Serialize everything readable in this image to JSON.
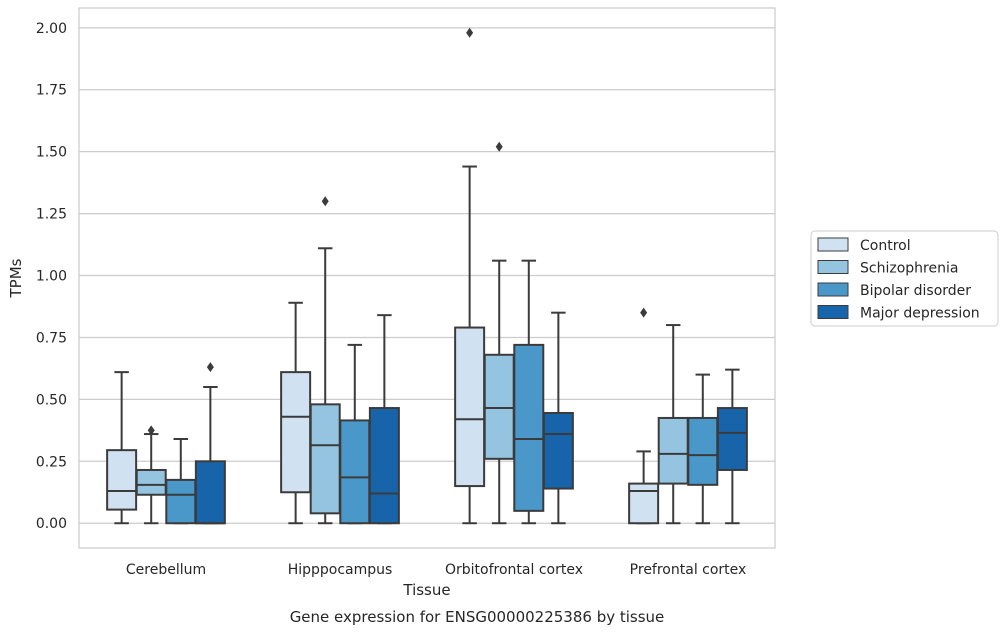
{
  "chart_data": {
    "type": "boxplot",
    "caption": "Gene expression for ENSG00000225386 by tissue",
    "xlabel": "Tissue",
    "ylabel": "TPMs",
    "ylim": [
      -0.1,
      2.08
    ],
    "yticks": [
      "0.00",
      "0.25",
      "0.50",
      "0.75",
      "1.00",
      "1.25",
      "1.50",
      "1.75",
      "2.00"
    ],
    "ytick_values": [
      0,
      0.25,
      0.5,
      0.75,
      1.0,
      1.25,
      1.5,
      1.75,
      2.0
    ],
    "grid": "horizontal",
    "legend_position": "right",
    "categories": [
      "Cerebellum",
      "Hipppocampus",
      "Orbitofrontal cortex",
      "Prefrontal cortex"
    ],
    "series": [
      {
        "name": "Control",
        "color": "#d0e1f2",
        "boxes": [
          {
            "min": 0.0,
            "q1": 0.055,
            "median": 0.13,
            "q3": 0.295,
            "max": 0.61,
            "outliers": []
          },
          {
            "min": 0.0,
            "q1": 0.125,
            "median": 0.43,
            "q3": 0.61,
            "max": 0.89,
            "outliers": []
          },
          {
            "min": 0.0,
            "q1": 0.15,
            "median": 0.42,
            "q3": 0.79,
            "max": 1.44,
            "outliers": [
              1.98
            ]
          },
          {
            "min": 0.0,
            "q1": 0.0,
            "median": 0.13,
            "q3": 0.16,
            "max": 0.29,
            "outliers": [
              0.85
            ]
          }
        ]
      },
      {
        "name": "Schizophrenia",
        "color": "#94c4df",
        "boxes": [
          {
            "min": 0.0,
            "q1": 0.115,
            "median": 0.155,
            "q3": 0.215,
            "max": 0.36,
            "outliers": [
              0.375
            ]
          },
          {
            "min": 0.0,
            "q1": 0.04,
            "median": 0.315,
            "q3": 0.48,
            "max": 1.11,
            "outliers": [
              1.3
            ]
          },
          {
            "min": 0.0,
            "q1": 0.26,
            "median": 0.465,
            "q3": 0.68,
            "max": 1.06,
            "outliers": [
              1.52
            ]
          },
          {
            "min": 0.0,
            "q1": 0.16,
            "median": 0.28,
            "q3": 0.425,
            "max": 0.8,
            "outliers": []
          }
        ]
      },
      {
        "name": "Bipolar disorder",
        "color": "#4a98c9",
        "boxes": [
          {
            "min": 0.0,
            "q1": 0.0,
            "median": 0.115,
            "q3": 0.175,
            "max": 0.34,
            "outliers": []
          },
          {
            "min": 0.0,
            "q1": 0.0,
            "median": 0.185,
            "q3": 0.415,
            "max": 0.72,
            "outliers": []
          },
          {
            "min": 0.0,
            "q1": 0.05,
            "median": 0.34,
            "q3": 0.72,
            "max": 1.06,
            "outliers": []
          },
          {
            "min": 0.0,
            "q1": 0.155,
            "median": 0.275,
            "q3": 0.425,
            "max": 0.6,
            "outliers": []
          }
        ]
      },
      {
        "name": "Major depression",
        "color": "#1764ab",
        "boxes": [
          {
            "min": 0.0,
            "q1": 0.0,
            "median": 0.0,
            "q3": 0.25,
            "max": 0.55,
            "outliers": [
              0.63
            ]
          },
          {
            "min": 0.0,
            "q1": 0.0,
            "median": 0.12,
            "q3": 0.465,
            "max": 0.84,
            "outliers": []
          },
          {
            "min": 0.0,
            "q1": 0.14,
            "median": 0.36,
            "q3": 0.445,
            "max": 0.85,
            "outliers": []
          },
          {
            "min": 0.0,
            "q1": 0.215,
            "median": 0.365,
            "q3": 0.465,
            "max": 0.62,
            "outliers": []
          }
        ]
      }
    ]
  }
}
